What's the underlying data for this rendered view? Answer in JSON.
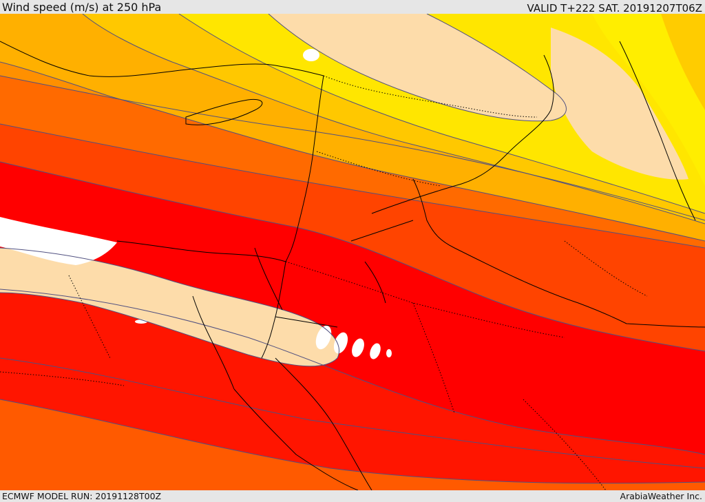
{
  "header": {
    "title": "Wind speed (m/s) at 250 hPa",
    "valid": "VALID T+222 SAT. 20191207T06Z"
  },
  "footer": {
    "model_run": "ECMWF MODEL RUN: 20191128T00Z",
    "credit": "ArabiaWeather Inc."
  },
  "palette": {
    "pale_peach": "#fddcaa",
    "yellow": "#ffee00",
    "gold": "#ffd200",
    "amber": "#ffb800",
    "orange": "#ff9000",
    "dark_orange": "#ff6a00",
    "red_orange": "#ff4400",
    "red": "#ff0000",
    "white": "#ffffff",
    "contour": "#505080",
    "border": "#000000"
  }
}
